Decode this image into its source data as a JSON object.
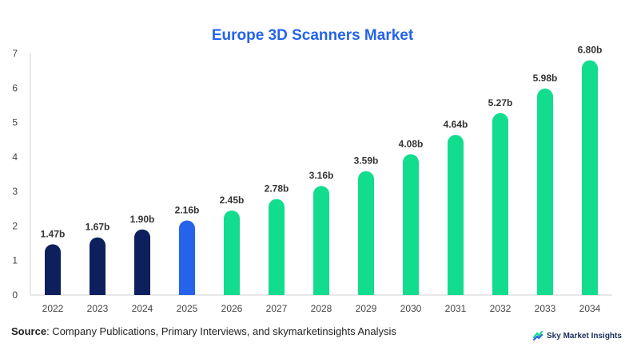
{
  "chart_data": {
    "type": "bar",
    "title": "Europe 3D Scanners Market",
    "categories": [
      "2022",
      "2023",
      "2024",
      "2025",
      "2026",
      "2027",
      "2028",
      "2029",
      "2030",
      "2031",
      "2032",
      "2033",
      "2034"
    ],
    "values": [
      1.47,
      1.67,
      1.9,
      2.16,
      2.45,
      2.78,
      3.16,
      3.59,
      4.08,
      4.64,
      5.27,
      5.98,
      6.8
    ],
    "value_labels": [
      "1.47b",
      "1.67b",
      "1.90b",
      "2.16b",
      "2.45b",
      "2.78b",
      "3.16b",
      "3.59b",
      "4.08b",
      "4.64b",
      "5.27b",
      "5.98b",
      "6.80b"
    ],
    "bar_colors": [
      "#0d1f5c",
      "#0d1f5c",
      "#0d1f5c",
      "#2563eb",
      "#12dd8f",
      "#12dd8f",
      "#12dd8f",
      "#12dd8f",
      "#12dd8f",
      "#12dd8f",
      "#12dd8f",
      "#12dd8f",
      "#12dd8f"
    ],
    "yticks": [
      "0",
      "1",
      "2",
      "3",
      "4",
      "5",
      "6",
      "7"
    ],
    "ylim": [
      0,
      7
    ],
    "grid": false
  },
  "source": {
    "label": "Source",
    "text": ": Company Publications, Primary Interviews, and skymarketinsights Analysis"
  },
  "brand": {
    "name": "Sky Market Insights",
    "colors": [
      "#12dd8f",
      "#2563eb"
    ]
  }
}
